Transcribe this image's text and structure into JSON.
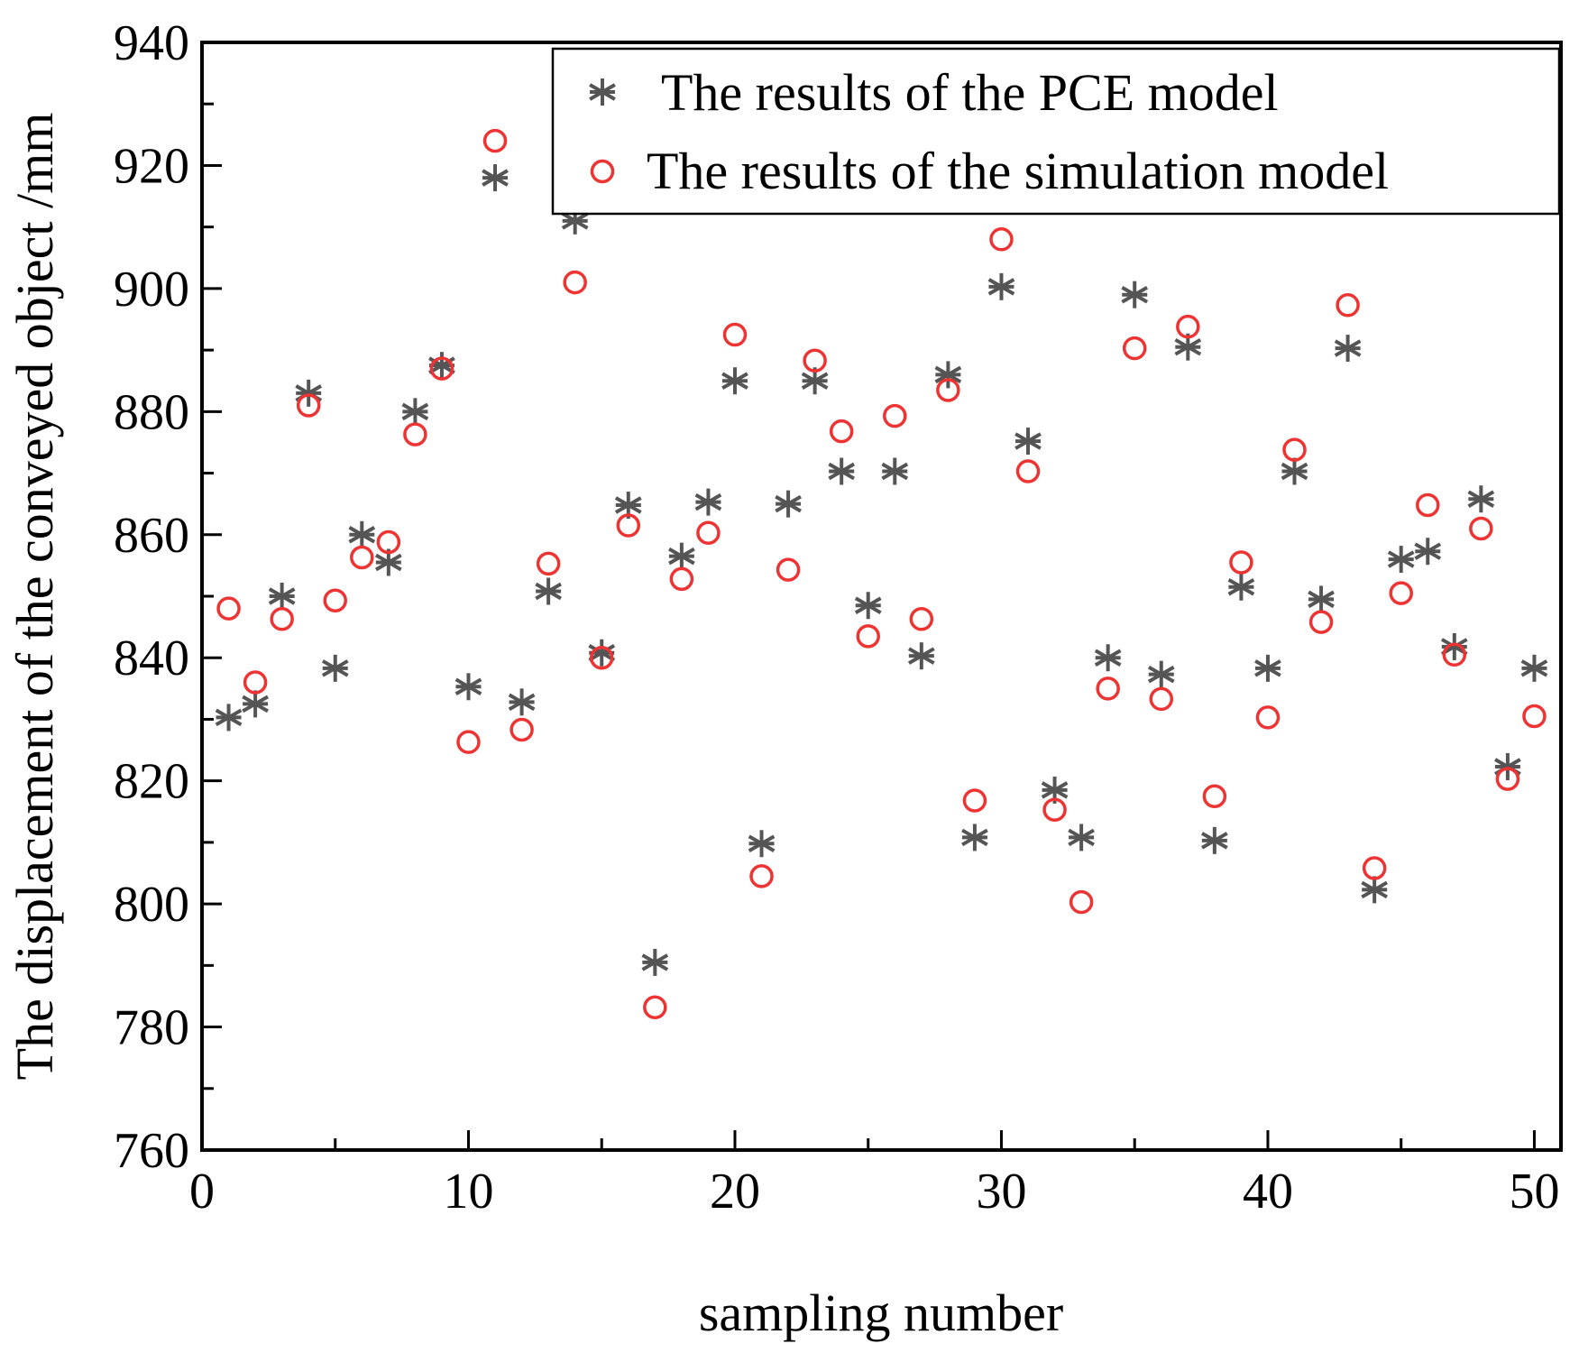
{
  "chart_data": {
    "type": "scatter",
    "title": "",
    "xlabel": "sampling number",
    "ylabel": "The displacement of the conveyed object /mm",
    "xlim": [
      0,
      51
    ],
    "ylim": [
      760,
      940
    ],
    "xticks": [
      0,
      10,
      20,
      30,
      40,
      50
    ],
    "yticks": [
      760,
      780,
      800,
      820,
      840,
      860,
      880,
      900,
      920,
      940
    ],
    "grid": false,
    "legend_position": "top-right",
    "x": [
      1,
      2,
      3,
      4,
      5,
      6,
      7,
      8,
      9,
      10,
      11,
      12,
      13,
      14,
      15,
      16,
      17,
      18,
      19,
      20,
      21,
      22,
      23,
      24,
      25,
      26,
      27,
      28,
      29,
      30,
      31,
      32,
      33,
      34,
      35,
      36,
      37,
      38,
      39,
      40,
      41,
      42,
      43,
      44,
      45,
      46,
      47,
      48,
      49,
      50
    ],
    "series": [
      {
        "name": "The results of the PCE model",
        "marker": "asterisk",
        "color": "#555555",
        "values": [
          830.3,
          832.5,
          850,
          883,
          838.3,
          860,
          855.5,
          880,
          887.5,
          835.3,
          918,
          832.8,
          850.8,
          911,
          840.8,
          864.8,
          790.5,
          856.5,
          865.3,
          885,
          809.8,
          865,
          885,
          870.3,
          848.5,
          870.3,
          840.3,
          886,
          810.8,
          900.3,
          875.2,
          818.5,
          810.8,
          840,
          899,
          837.3,
          890.5,
          810.3,
          851.5,
          838.3,
          870.3,
          849.5,
          890.3,
          802.3,
          856,
          857.3,
          841.8,
          865.8,
          822.3,
          838.3
        ]
      },
      {
        "name": "The results of the simulation model",
        "marker": "open-circle",
        "color": "#ee3333",
        "values": [
          848,
          836,
          846.3,
          881,
          849.3,
          856.3,
          858.8,
          876.3,
          887,
          826.3,
          924,
          828.3,
          855.3,
          901,
          840,
          861.5,
          783.2,
          852.8,
          860.3,
          892.5,
          804.5,
          854.3,
          888.3,
          876.8,
          843.5,
          879.3,
          846.3,
          883.5,
          816.8,
          908,
          870.3,
          815.3,
          800.3,
          835,
          890.3,
          833.3,
          893.8,
          817.5,
          855.5,
          830.3,
          873.8,
          845.8,
          897.3,
          805.8,
          850.5,
          864.8,
          840.5,
          861,
          820.3,
          830.5
        ]
      }
    ]
  }
}
